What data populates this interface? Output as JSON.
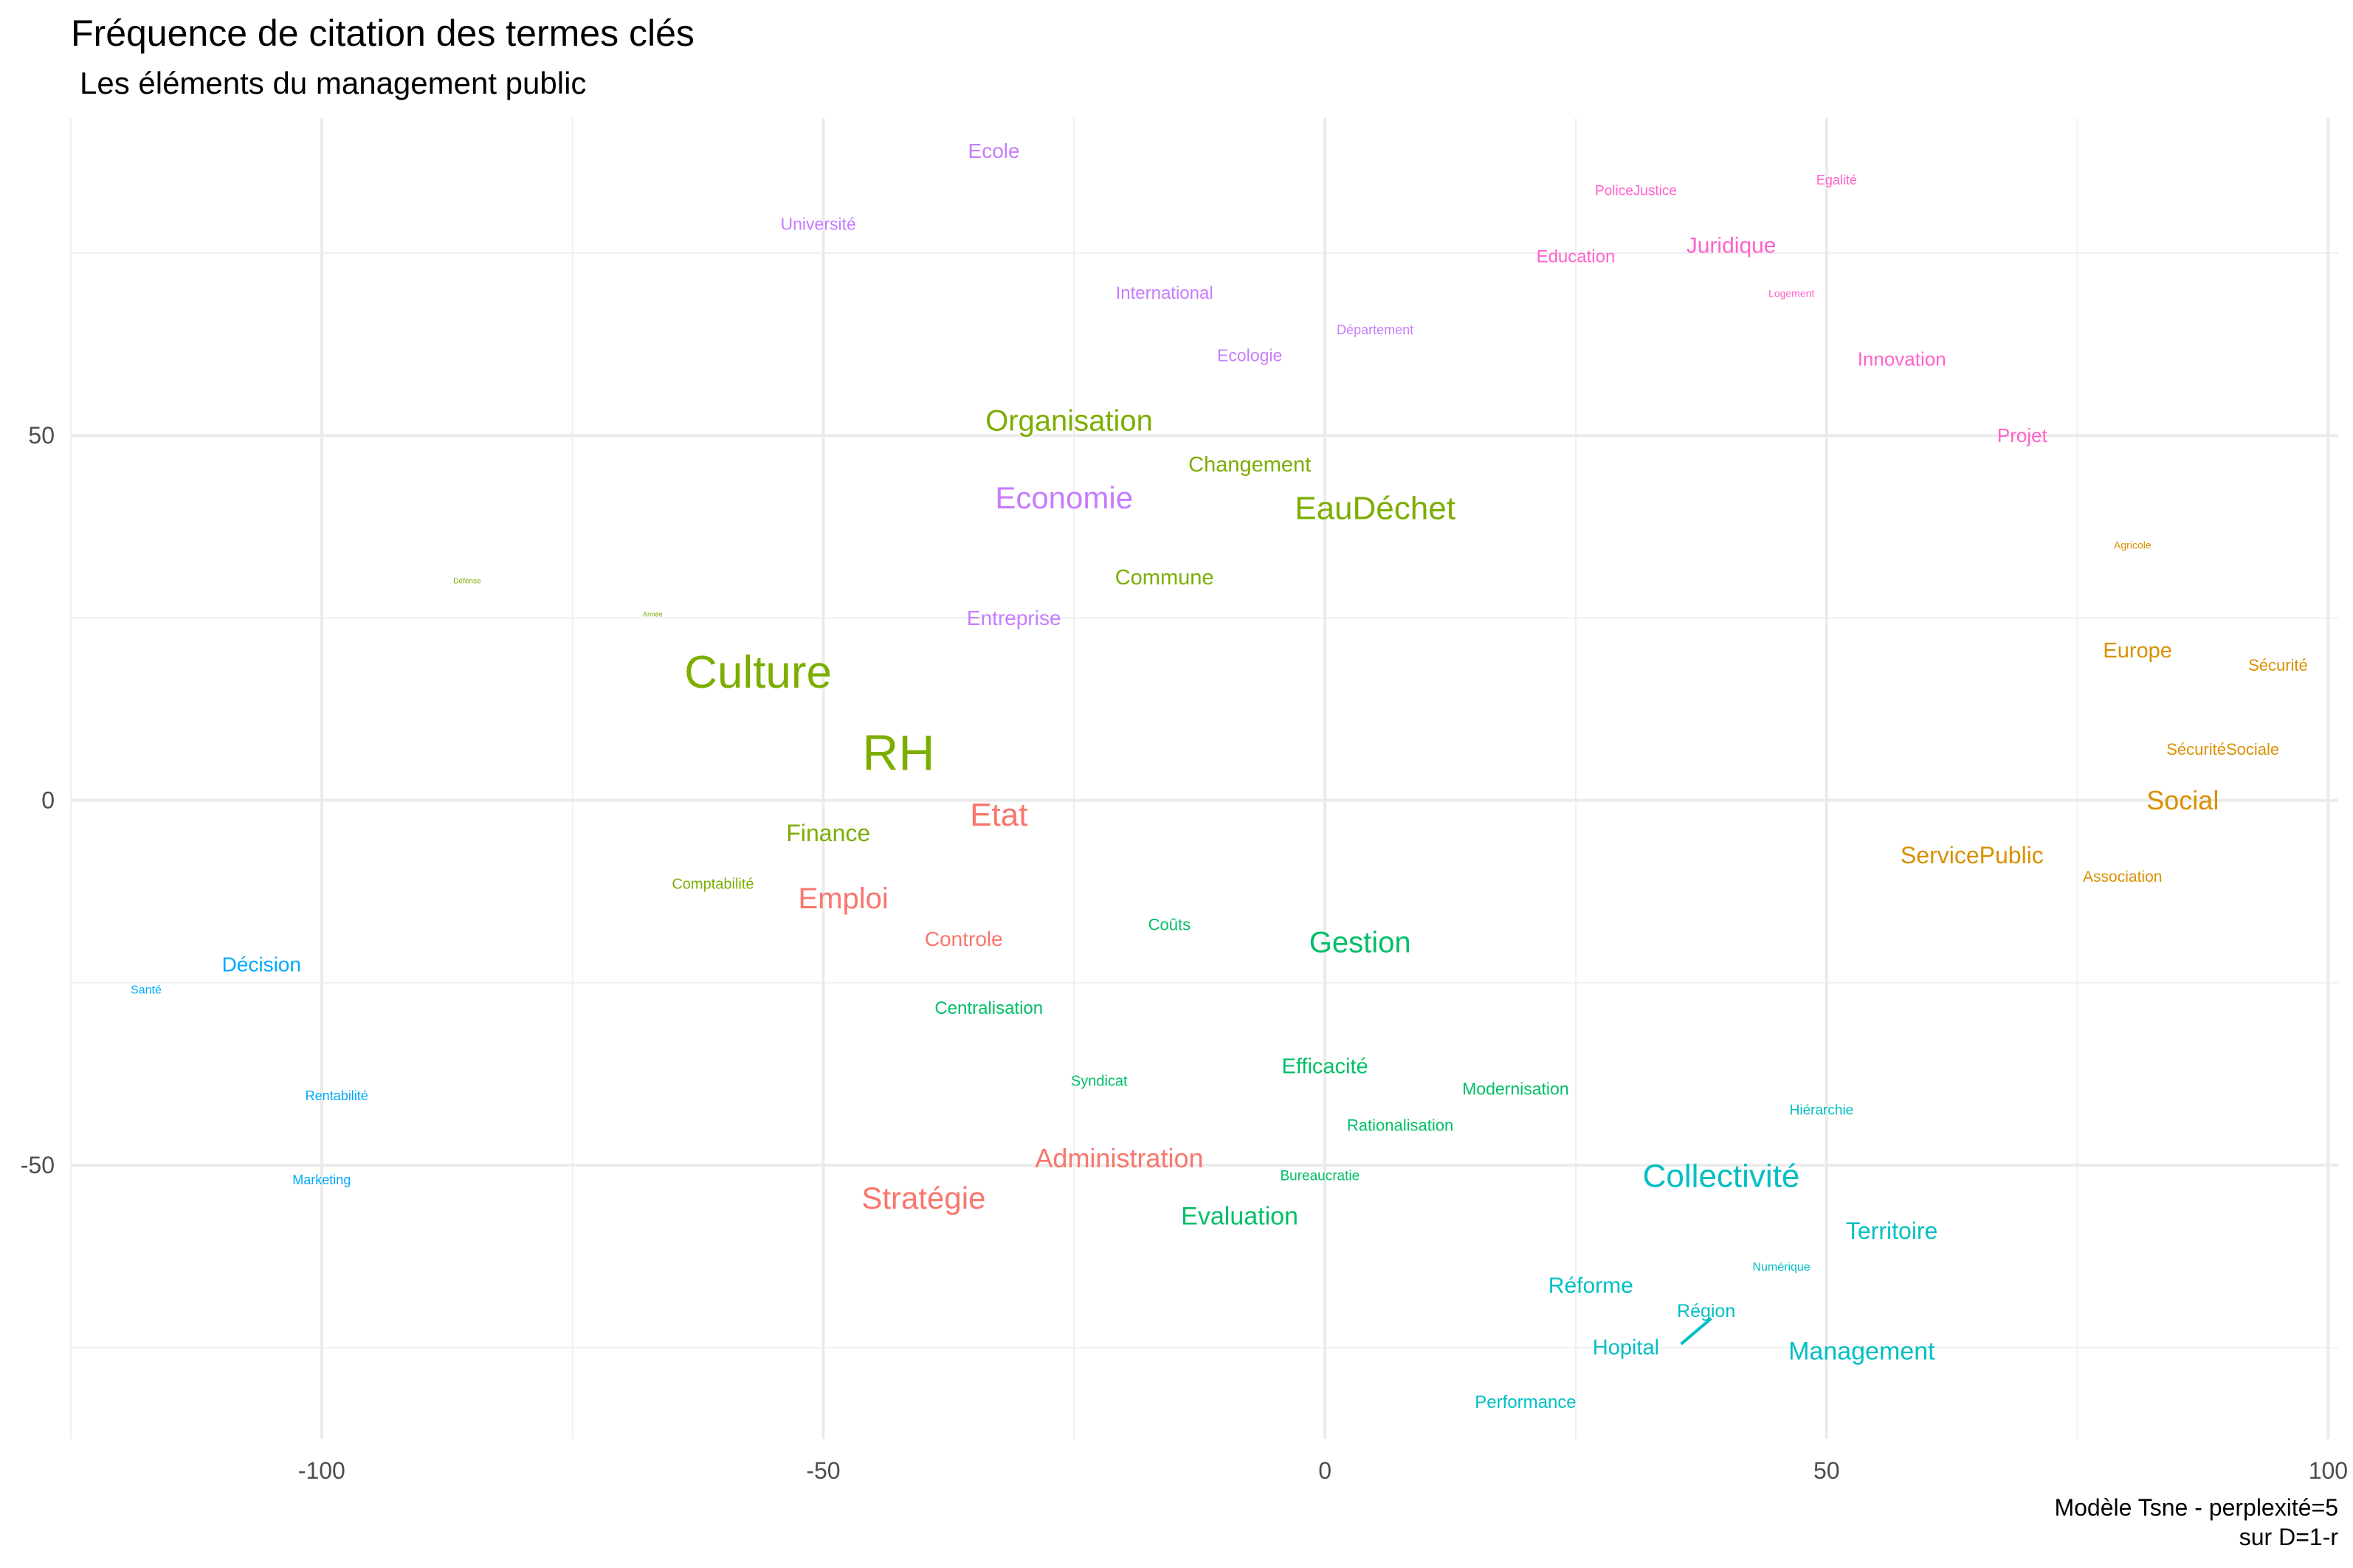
{
  "chart_data": {
    "type": "scatter",
    "title": "Fréquence de citation des termes clés",
    "subtitle": "Les éléments du management public",
    "caption": [
      "Modèle Tsne - perplexité=5",
      "sur D=1-r"
    ],
    "xlabel": "",
    "ylabel": "",
    "xlim": [
      -125,
      101
    ],
    "ylim": [
      -87.5,
      93.5
    ],
    "xticks": [
      -100,
      -50,
      0,
      50,
      100
    ],
    "yticks": [
      -50,
      0,
      50
    ],
    "xtick_labels": [
      "-100",
      "-50",
      "0",
      "50",
      "100"
    ],
    "ytick_labels": [
      "-50",
      "0",
      "50"
    ],
    "grid": true,
    "legend": "none",
    "clusters": {
      "red": "#F8766D",
      "olive": "#7CAE00",
      "green": "#00BE67",
      "teal": "#00BFC4",
      "blue": "#00A9FF",
      "purple": "#C77CFF",
      "pink": "#FF61CC",
      "orange": "#D89000"
    },
    "points": [
      {
        "label": "Ecole",
        "x": -33,
        "y": 89,
        "size": 28,
        "cluster": "purple"
      },
      {
        "label": "Université",
        "x": -50.5,
        "y": 79,
        "size": 23,
        "cluster": "purple"
      },
      {
        "label": "International",
        "x": -16,
        "y": 69.5,
        "size": 24,
        "cluster": "purple"
      },
      {
        "label": "Département",
        "x": 5,
        "y": 64.5,
        "size": 18,
        "cluster": "purple"
      },
      {
        "label": "Ecologie",
        "x": -7.5,
        "y": 61,
        "size": 23,
        "cluster": "purple"
      },
      {
        "label": "Economie",
        "x": -26,
        "y": 41.5,
        "size": 42,
        "cluster": "purple"
      },
      {
        "label": "Entreprise",
        "x": -31,
        "y": 25,
        "size": 28,
        "cluster": "purple"
      },
      {
        "label": "PoliceJustice",
        "x": 31,
        "y": 83.5,
        "size": 19,
        "cluster": "pink"
      },
      {
        "label": "Egalité",
        "x": 51,
        "y": 85,
        "size": 18,
        "cluster": "pink"
      },
      {
        "label": "Education",
        "x": 25,
        "y": 74.5,
        "size": 24,
        "cluster": "pink"
      },
      {
        "label": "Juridique",
        "x": 40.5,
        "y": 76,
        "size": 30,
        "cluster": "pink"
      },
      {
        "label": "Logement",
        "x": 46.5,
        "y": 69.5,
        "size": 14,
        "cluster": "pink"
      },
      {
        "label": "Innovation",
        "x": 57.5,
        "y": 60.5,
        "size": 26,
        "cluster": "pink"
      },
      {
        "label": "Projet",
        "x": 69.5,
        "y": 50,
        "size": 26,
        "cluster": "pink"
      },
      {
        "label": "Organisation",
        "x": -25.5,
        "y": 52,
        "size": 40,
        "cluster": "olive"
      },
      {
        "label": "Changement",
        "x": -7.5,
        "y": 46,
        "size": 29,
        "cluster": "olive"
      },
      {
        "label": "EauDéchet",
        "x": 5,
        "y": 40,
        "size": 44,
        "cluster": "olive"
      },
      {
        "label": "Commune",
        "x": -16,
        "y": 30.5,
        "size": 29,
        "cluster": "olive"
      },
      {
        "label": "Défense",
        "x": -85.5,
        "y": 30,
        "size": 10,
        "cluster": "olive"
      },
      {
        "label": "Armée",
        "x": -67,
        "y": 25.5,
        "size": 9,
        "cluster": "olive"
      },
      {
        "label": "Culture",
        "x": -56.5,
        "y": 17.5,
        "size": 62,
        "cluster": "olive"
      },
      {
        "label": "RH",
        "x": -42.5,
        "y": 6.5,
        "size": 68,
        "cluster": "olive"
      },
      {
        "label": "Finance",
        "x": -49.5,
        "y": -4.5,
        "size": 32,
        "cluster": "olive"
      },
      {
        "label": "Comptabilité",
        "x": -61,
        "y": -11.5,
        "size": 20,
        "cluster": "olive"
      },
      {
        "label": "Etat",
        "x": -32.5,
        "y": -2,
        "size": 44,
        "cluster": "red"
      },
      {
        "label": "Emploi",
        "x": -48,
        "y": -13.5,
        "size": 40,
        "cluster": "red"
      },
      {
        "label": "Controle",
        "x": -36,
        "y": -19,
        "size": 28,
        "cluster": "red"
      },
      {
        "label": "Administration",
        "x": -20.5,
        "y": -49,
        "size": 36,
        "cluster": "red"
      },
      {
        "label": "Stratégie",
        "x": -40,
        "y": -54.5,
        "size": 42,
        "cluster": "red"
      },
      {
        "label": "Coûts",
        "x": -15.5,
        "y": -17,
        "size": 22,
        "cluster": "green"
      },
      {
        "label": "Gestion",
        "x": 3.5,
        "y": -19.5,
        "size": 40,
        "cluster": "green"
      },
      {
        "label": "Centralisation",
        "x": -33.5,
        "y": -28.5,
        "size": 24,
        "cluster": "green"
      },
      {
        "label": "Efficacité",
        "x": 0,
        "y": -36.5,
        "size": 29,
        "cluster": "green"
      },
      {
        "label": "Syndicat",
        "x": -22.5,
        "y": -38.5,
        "size": 20,
        "cluster": "green"
      },
      {
        "label": "Modernisation",
        "x": 19,
        "y": -39.5,
        "size": 23,
        "cluster": "green"
      },
      {
        "label": "Rationalisation",
        "x": 7.5,
        "y": -44.5,
        "size": 22,
        "cluster": "green"
      },
      {
        "label": "Bureaucratie",
        "x": -0.5,
        "y": -51.5,
        "size": 19,
        "cluster": "green"
      },
      {
        "label": "Evaluation",
        "x": -8.5,
        "y": -57,
        "size": 34,
        "cluster": "green"
      },
      {
        "label": "Collectivité",
        "x": 39.5,
        "y": -51.5,
        "size": 44,
        "cluster": "teal"
      },
      {
        "label": "Hiérarchie",
        "x": 49.5,
        "y": -42.5,
        "size": 19,
        "cluster": "teal"
      },
      {
        "label": "Territoire",
        "x": 56.5,
        "y": -59,
        "size": 32,
        "cluster": "teal"
      },
      {
        "label": "Numérique",
        "x": 45.5,
        "y": -64,
        "size": 16,
        "cluster": "teal"
      },
      {
        "label": "Réforme",
        "x": 26.5,
        "y": -66.5,
        "size": 30,
        "cluster": "teal"
      },
      {
        "label": "Région",
        "x": 38,
        "y": -70,
        "size": 25,
        "cluster": "teal"
      },
      {
        "label": "Hopital",
        "x": 30,
        "y": -75,
        "size": 29,
        "cluster": "teal"
      },
      {
        "label": "Management",
        "x": 53.5,
        "y": -75.5,
        "size": 34,
        "cluster": "teal"
      },
      {
        "label": "Performance",
        "x": 20,
        "y": -82.5,
        "size": 24,
        "cluster": "teal"
      },
      {
        "label": "Décision",
        "x": -106,
        "y": -22.5,
        "size": 28,
        "cluster": "blue"
      },
      {
        "label": "Santé",
        "x": -117.5,
        "y": -26,
        "size": 16,
        "cluster": "blue"
      },
      {
        "label": "Rentabilité",
        "x": -98.5,
        "y": -40.5,
        "size": 18,
        "cluster": "blue"
      },
      {
        "label": "Marketing",
        "x": -100,
        "y": -52,
        "size": 18,
        "cluster": "blue"
      },
      {
        "label": "Agricole",
        "x": 80.5,
        "y": 35,
        "size": 14,
        "cluster": "orange"
      },
      {
        "label": "Europe",
        "x": 81,
        "y": 20.5,
        "size": 29,
        "cluster": "orange"
      },
      {
        "label": "Sécurité",
        "x": 95,
        "y": 18.5,
        "size": 22,
        "cluster": "orange"
      },
      {
        "label": "SécuritéSociale",
        "x": 89.5,
        "y": 7,
        "size": 22,
        "cluster": "orange"
      },
      {
        "label": "Social",
        "x": 85.5,
        "y": 0,
        "size": 36,
        "cluster": "orange"
      },
      {
        "label": "ServicePublic",
        "x": 64.5,
        "y": -7.5,
        "size": 32,
        "cluster": "orange"
      },
      {
        "label": "Association",
        "x": 79.5,
        "y": -10.5,
        "size": 21,
        "cluster": "orange"
      }
    ],
    "segments": [
      {
        "cluster": "teal",
        "x1": 35.5,
        "y1": -74.5,
        "x2": 38.5,
        "y2": -71
      }
    ]
  }
}
